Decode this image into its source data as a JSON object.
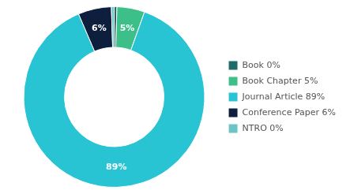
{
  "chart_data": {
    "type": "pie",
    "categories": [
      "Book 0%",
      "Book Chapter 5%",
      "Journal Article 89%",
      "Conference Paper 6%",
      "NTRO 0%"
    ],
    "values": [
      0.5,
      5,
      89,
      6,
      0.5
    ],
    "value_labels": [
      null,
      "5%",
      "89%",
      "6%",
      null
    ],
    "colors": [
      "#1e6b6b",
      "#3dbf8a",
      "#29c4d4",
      "#0d1f3c",
      "#6cc4c4"
    ],
    "data_labels": true,
    "legend": "right"
  }
}
